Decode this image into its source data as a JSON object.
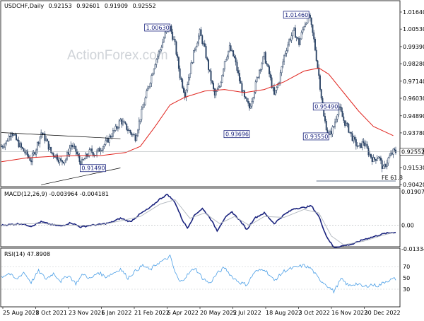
{
  "chart_data": [
    {
      "type": "candlestick",
      "title": "USDCHF,Daily",
      "ohlc_header": [
        "0.92153",
        "0.92601",
        "0.91909",
        "0.92552"
      ],
      "current_price": "0.92552",
      "y_ticks": [
        "1.01640",
        "1.00530",
        "0.99390",
        "0.98280",
        "0.97140",
        "0.96030",
        "0.94890",
        "0.93780",
        "0.92640",
        "0.91530",
        "0.90420"
      ],
      "x_ticks": [
        "25 Aug 2021",
        "8 Oct 2021",
        "23 Nov 2021",
        "6 Jan 2022",
        "21 Feb 2022",
        "6 Apr 2022",
        "20 May 2022",
        "5 Jul 2022",
        "18 Aug 2022",
        "3 Oct 2022",
        "16 Nov 2022",
        "30 Dec 2022"
      ],
      "ylim": [
        0.9042,
        1.0164
      ],
      "series_name": "USDCHF",
      "close_path": [
        [
          0,
          0.929
        ],
        [
          4,
          0.932
        ],
        [
          8,
          0.939
        ],
        [
          12,
          0.933
        ],
        [
          16,
          0.928
        ],
        [
          20,
          0.924
        ],
        [
          24,
          0.92
        ],
        [
          28,
          0.928
        ],
        [
          32,
          0.938
        ],
        [
          36,
          0.933
        ],
        [
          40,
          0.925
        ],
        [
          44,
          0.923
        ],
        [
          48,
          0.919
        ],
        [
          52,
          0.921
        ],
        [
          56,
          0.93
        ],
        [
          60,
          0.926
        ],
        [
          64,
          0.917
        ],
        [
          68,
          0.922
        ],
        [
          72,
          0.926
        ],
        [
          76,
          0.924
        ],
        [
          80,
          0.928
        ],
        [
          84,
          0.931
        ],
        [
          88,
          0.936
        ],
        [
          92,
          0.94
        ],
        [
          96,
          0.946
        ],
        [
          100,
          0.942
        ],
        [
          104,
          0.938
        ],
        [
          108,
          0.935
        ],
        [
          112,
          0.948
        ],
        [
          116,
          0.96
        ],
        [
          120,
          0.972
        ],
        [
          124,
          0.984
        ],
        [
          128,
          0.992
        ],
        [
          132,
          1.002
        ],
        [
          136,
          1.0063
        ],
        [
          140,
          0.995
        ],
        [
          144,
          0.975
        ],
        [
          148,
          0.963
        ],
        [
          152,
          0.978
        ],
        [
          156,
          0.993
        ],
        [
          160,
          1.003
        ],
        [
          164,
          0.992
        ],
        [
          168,
          0.976
        ],
        [
          172,
          0.962
        ],
        [
          176,
          0.968
        ],
        [
          180,
          0.985
        ],
        [
          184,
          0.993
        ],
        [
          188,
          0.986
        ],
        [
          192,
          0.972
        ],
        [
          196,
          0.96
        ],
        [
          200,
          0.954
        ],
        [
          204,
          0.966
        ],
        [
          208,
          0.979
        ],
        [
          212,
          0.988
        ],
        [
          216,
          0.976
        ],
        [
          220,
          0.962
        ],
        [
          224,
          0.972
        ],
        [
          228,
          0.988
        ],
        [
          232,
          0.998
        ],
        [
          236,
          1.004
        ],
        [
          240,
          0.996
        ],
        [
          244,
          1.008
        ],
        [
          248,
          1.0146
        ],
        [
          252,
          0.998
        ],
        [
          256,
          0.975
        ],
        [
          260,
          0.948
        ],
        [
          264,
          0.9355
        ],
        [
          268,
          0.942
        ],
        [
          272,
          0.9549
        ],
        [
          276,
          0.946
        ],
        [
          280,
          0.94
        ],
        [
          284,
          0.933
        ],
        [
          288,
          0.928
        ],
        [
          292,
          0.932
        ],
        [
          296,
          0.925
        ],
        [
          300,
          0.92
        ],
        [
          304,
          0.923
        ],
        [
          308,
          0.914
        ],
        [
          312,
          0.921
        ],
        [
          316,
          0.9255
        ]
      ],
      "moving_average": [
        [
          0,
          0.919
        ],
        [
          20,
          0.9215
        ],
        [
          40,
          0.9225
        ],
        [
          60,
          0.923
        ],
        [
          80,
          0.923
        ],
        [
          100,
          0.925
        ],
        [
          112,
          0.929
        ],
        [
          124,
          0.942
        ],
        [
          136,
          0.956
        ],
        [
          148,
          0.961
        ],
        [
          164,
          0.965
        ],
        [
          180,
          0.966
        ],
        [
          196,
          0.964
        ],
        [
          212,
          0.966
        ],
        [
          228,
          0.971
        ],
        [
          244,
          0.978
        ],
        [
          256,
          0.98
        ],
        [
          264,
          0.976
        ],
        [
          276,
          0.964
        ],
        [
          288,
          0.952
        ],
        [
          300,
          0.942
        ],
        [
          316,
          0.936
        ]
      ],
      "trendlines": [
        {
          "from": [
            0,
            0.938
          ],
          "to": [
            96,
            0.934
          ]
        },
        {
          "from": [
            32,
            0.904
          ],
          "to": [
            96,
            0.915
          ]
        }
      ],
      "fib_line": {
        "label": "FE 61.8",
        "y": 0.9065,
        "from_x": 254,
        "to_x": 318
      },
      "annotations": [
        {
          "text": "1.00630",
          "x": 136,
          "y": 1.0063
        },
        {
          "text": "1.01460",
          "x": 248,
          "y": 1.0146
        },
        {
          "text": "0.93696",
          "x": 200,
          "y": 0.937
        },
        {
          "text": "0.95490",
          "x": 272,
          "y": 0.9549
        },
        {
          "text": "0.93550",
          "x": 264,
          "y": 0.9355
        },
        {
          "text": "0.91490",
          "x": 84,
          "y": 0.9149
        }
      ],
      "watermark": "ActionForex.com"
    },
    {
      "type": "line",
      "title": "MACD(12,26,9) -0.003964 -0.004181",
      "y_ticks": [
        "0.01907",
        "0.00",
        "-0.01334"
      ],
      "ylim": [
        -0.01334,
        0.01907
      ],
      "series": [
        {
          "name": "MACD",
          "values": [
            [
              0,
              0.0
            ],
            [
              8,
              0.0005
            ],
            [
              16,
              0.001
            ],
            [
              24,
              -0.0005
            ],
            [
              32,
              0.002
            ],
            [
              40,
              0.0005
            ],
            [
              48,
              -0.0005
            ],
            [
              56,
              0.0015
            ],
            [
              64,
              -0.001
            ],
            [
              72,
              0.0
            ],
            [
              80,
              0.0005
            ],
            [
              88,
              0.0015
            ],
            [
              96,
              0.004
            ],
            [
              104,
              0.002
            ],
            [
              112,
              0.0065
            ],
            [
              120,
              0.01
            ],
            [
              128,
              0.015
            ],
            [
              134,
              0.0175
            ],
            [
              140,
              0.013
            ],
            [
              146,
              0.003
            ],
            [
              150,
              -0.0015
            ],
            [
              156,
              0.006
            ],
            [
              162,
              0.0095
            ],
            [
              168,
              0.0045
            ],
            [
              174,
              -0.003
            ],
            [
              180,
              0.004
            ],
            [
              186,
              0.0075
            ],
            [
              192,
              0.003
            ],
            [
              198,
              -0.0025
            ],
            [
              204,
              0.004
            ],
            [
              212,
              0.007
            ],
            [
              220,
              0.001
            ],
            [
              228,
              0.006
            ],
            [
              236,
              0.0095
            ],
            [
              244,
              0.01
            ],
            [
              250,
              0.011
            ],
            [
              256,
              0.005
            ],
            [
              262,
              -0.006
            ],
            [
              268,
              -0.0125
            ],
            [
              276,
              -0.0115
            ],
            [
              284,
              -0.0105
            ],
            [
              292,
              -0.008
            ],
            [
              300,
              -0.0065
            ],
            [
              308,
              -0.0048
            ],
            [
              316,
              -0.004
            ]
          ]
        },
        {
          "name": "Signal",
          "values": [
            [
              0,
              0.0
            ],
            [
              16,
              0.0008
            ],
            [
              32,
              0.001
            ],
            [
              48,
              0.0002
            ],
            [
              64,
              0.0
            ],
            [
              80,
              0.0003
            ],
            [
              96,
              0.0025
            ],
            [
              112,
              0.005
            ],
            [
              128,
              0.012
            ],
            [
              140,
              0.0145
            ],
            [
              152,
              0.004
            ],
            [
              164,
              0.007
            ],
            [
              176,
              0.001
            ],
            [
              188,
              0.005
            ],
            [
              200,
              0.0
            ],
            [
              212,
              0.005
            ],
            [
              228,
              0.0045
            ],
            [
              244,
              0.009
            ],
            [
              256,
              0.007
            ],
            [
              266,
              -0.006
            ],
            [
              276,
              -0.011
            ],
            [
              292,
              -0.009
            ],
            [
              308,
              -0.0055
            ],
            [
              316,
              -0.0042
            ]
          ]
        }
      ]
    },
    {
      "type": "line",
      "title": "RSI(14) 47.8908",
      "y_ticks": [
        "70",
        "50",
        "30"
      ],
      "ylim": [
        0,
        100
      ],
      "series": [
        {
          "name": "RSI",
          "values": [
            [
              0,
              52
            ],
            [
              6,
              58
            ],
            [
              12,
              47
            ],
            [
              18,
              60
            ],
            [
              24,
              42
            ],
            [
              30,
              62
            ],
            [
              36,
              48
            ],
            [
              42,
              58
            ],
            [
              48,
              44
            ],
            [
              54,
              55
            ],
            [
              60,
              40
            ],
            [
              66,
              57
            ],
            [
              72,
              48
            ],
            [
              78,
              60
            ],
            [
              84,
              52
            ],
            [
              90,
              58
            ],
            [
              96,
              66
            ],
            [
              102,
              50
            ],
            [
              108,
              62
            ],
            [
              114,
              72
            ],
            [
              120,
              64
            ],
            [
              126,
              76
            ],
            [
              132,
              82
            ],
            [
              136,
              88
            ],
            [
              140,
              60
            ],
            [
              144,
              42
            ],
            [
              150,
              55
            ],
            [
              156,
              68
            ],
            [
              162,
              50
            ],
            [
              168,
              40
            ],
            [
              174,
              58
            ],
            [
              180,
              68
            ],
            [
              186,
              52
            ],
            [
              192,
              42
            ],
            [
              198,
              38
            ],
            [
              204,
              60
            ],
            [
              212,
              66
            ],
            [
              220,
              45
            ],
            [
              228,
              62
            ],
            [
              236,
              68
            ],
            [
              244,
              72
            ],
            [
              250,
              66
            ],
            [
              256,
              48
            ],
            [
              262,
              38
            ],
            [
              268,
              26
            ],
            [
              274,
              48
            ],
            [
              280,
              36
            ],
            [
              286,
              40
            ],
            [
              292,
              34
            ],
            [
              298,
              38
            ],
            [
              304,
              36
            ],
            [
              310,
              44
            ],
            [
              316,
              48
            ]
          ]
        }
      ]
    }
  ]
}
